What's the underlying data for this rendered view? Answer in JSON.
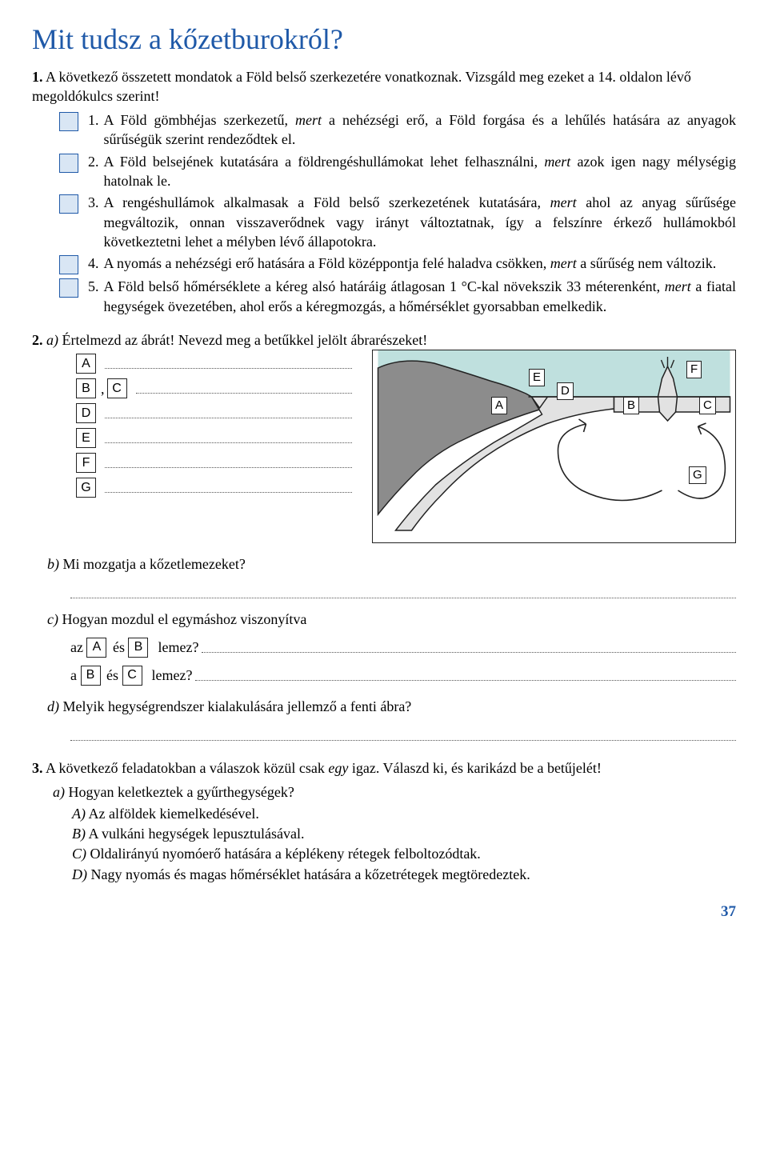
{
  "title": "Mit tudsz a kőzetburokról?",
  "q1": {
    "intro_num": "1.",
    "intro": "A következő összetett mondatok a Föld belső szerkezetére vonatkoznak. Vizsgáld meg ezeket a 14. oldalon lévő megoldókulcs szerint!",
    "items": [
      {
        "n": "1.",
        "t": "A Föld gömbhéjas szerkezetű,",
        "i": "mert",
        "r": "a nehézségi erő, a Föld forgása és a lehűlés hatására az anyagok sűrűségük szerint rendeződtek el."
      },
      {
        "n": "2.",
        "t": "A Föld belsejének kutatására a földrengéshullámokat lehet felhasználni,",
        "i": "mert",
        "r": "azok igen nagy mélységig hatolnak le."
      },
      {
        "n": "3.",
        "t": "A rengéshullámok alkalmasak a Föld belső szerkezetének kutatására,",
        "i": "mert",
        "r": "ahol az anyag sűrűsége megváltozik, onnan visszaverődnek vagy irányt változtatnak, így a felszínre érkező hullámokból következtetni lehet a mélyben lévő állapotokra."
      },
      {
        "n": "4.",
        "t": "A nyomás a nehézségi erő hatására a Föld középpontja felé haladva csökken,",
        "i": "mert",
        "r": "a sűrűség nem változik."
      },
      {
        "n": "5.",
        "t": "A Föld belső hőmérséklete a kéreg alsó határáig átlagosan 1 °C-kal növekszik 33 méterenként,",
        "i": "mert",
        "r": "a fiatal hegységek övezetében, ahol erős a kéregmozgás, a hőmérséklet gyorsabban emelkedik."
      }
    ]
  },
  "q2": {
    "num": "2.",
    "a_label": "a)",
    "a_text": "Értelmezd az ábrát! Nevezd meg a betűkkel jelölt ábrarészeket!",
    "letters": [
      "A",
      "B",
      "C",
      "D",
      "E",
      "F",
      "G"
    ],
    "comma": ",",
    "diagram_labels": {
      "A": "A",
      "B": "B",
      "C": "C",
      "D": "D",
      "E": "E",
      "F": "F",
      "G": "G"
    },
    "diagram_colors": {
      "sky": "#bfe0de",
      "plate_light": "#e2e2e2",
      "plate_dark": "#8c8c8c",
      "mantle": "#ffffff",
      "border": "#222"
    },
    "b_label": "b)",
    "b_text": "Mi mozgatja a kőzetlemezeket?",
    "c_label": "c)",
    "c_text": "Hogyan mozdul el egymáshoz viszonyítva",
    "c_row1_pre": "az",
    "c_row1_mid": "és",
    "c_row1_end": "lemez?",
    "c_row2_pre": "a",
    "c_row2_mid": "és",
    "c_row2_end": "lemez?",
    "d_label": "d)",
    "d_text": "Melyik hegységrendszer kialakulására jellemző a fenti ábra?"
  },
  "q3": {
    "num": "3.",
    "intro": "A következő feladatokban a válaszok közül csak",
    "intro_i": "egy",
    "intro_r": "igaz. Válaszd ki, és karikázd be a betűjelét!",
    "a_label": "a)",
    "a_text": "Hogyan keletkeztek a gyűrthegységek?",
    "options": [
      {
        "l": "A)",
        "t": "Az alföldek kiemelkedésével."
      },
      {
        "l": "B)",
        "t": "A vulkáni hegységek lepusztulásával."
      },
      {
        "l": "C)",
        "t": "Oldalirányú nyomóerő hatására a képlékeny rétegek felboltozódtak."
      },
      {
        "l": "D)",
        "t": "Nagy nyomás és magas hőmérséklet hatására a kőzetrétegek megtöredeztek."
      }
    ]
  },
  "page_num": "37"
}
